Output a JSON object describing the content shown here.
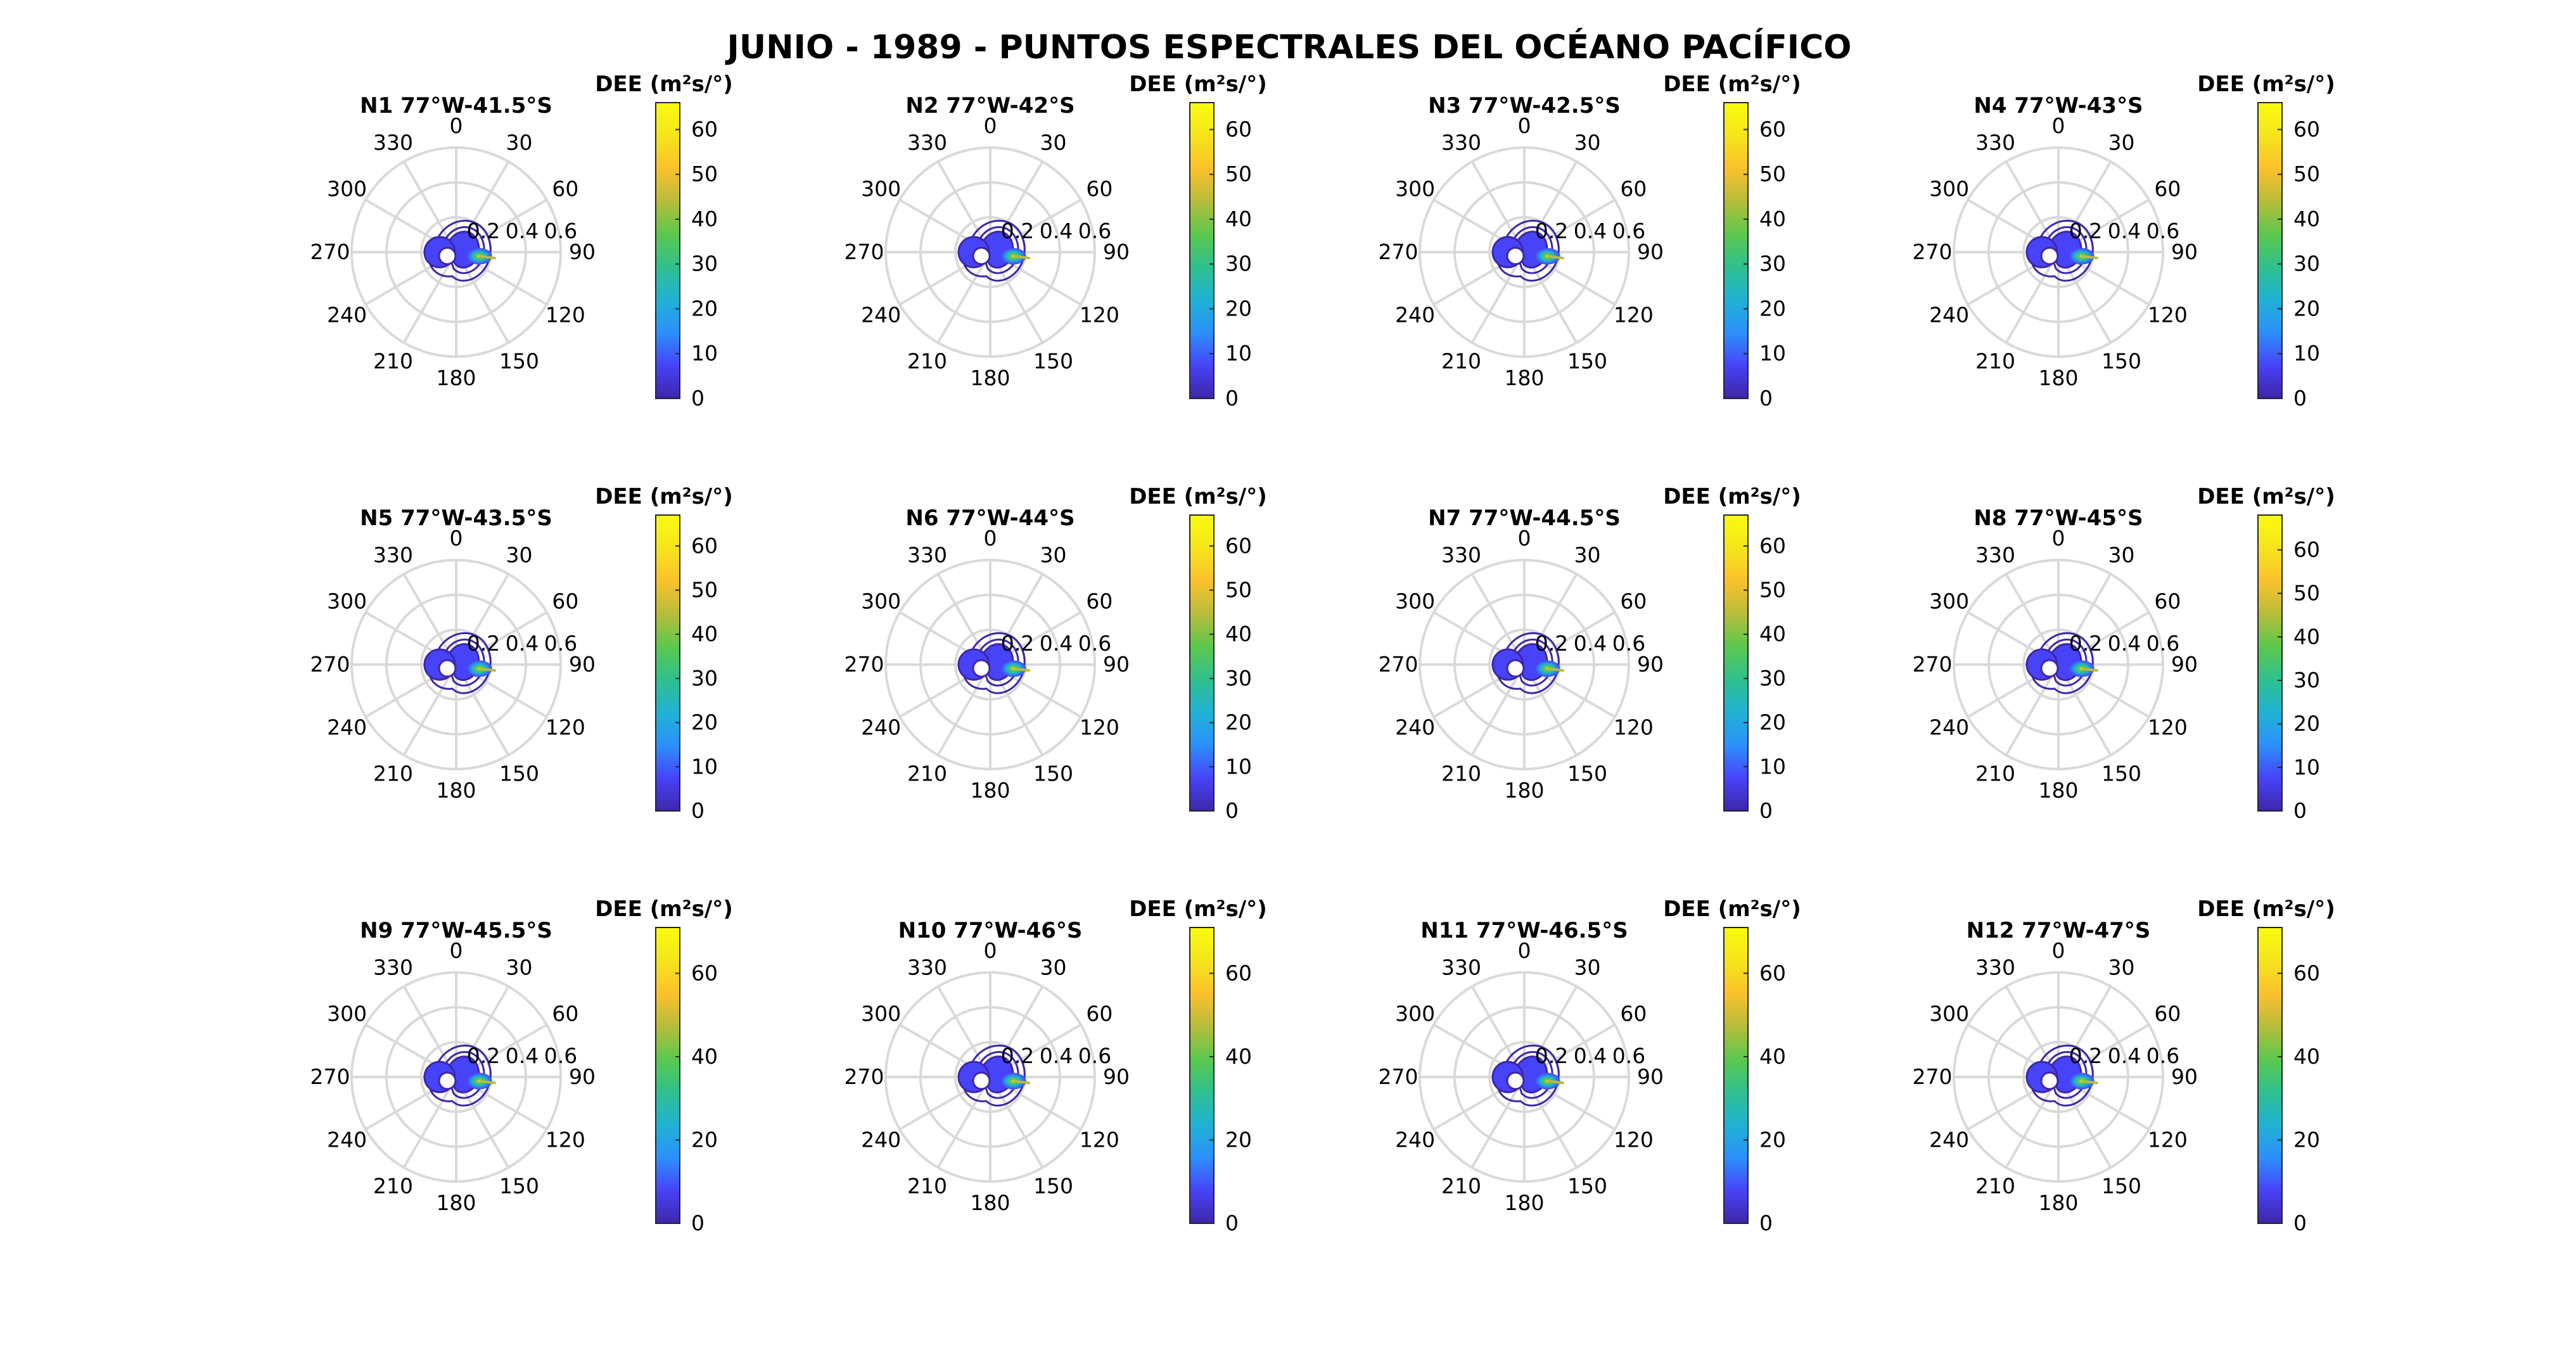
{
  "figure": {
    "title": "JUNIO - 1989 - PUNTOS ESPECTRALES DEL OCÉANO PACÍFICO",
    "colorbar_title": "DEE (m²s/°)",
    "colormap": [
      "#3e26a8",
      "#4743f8",
      "#2c90fc",
      "#1fb2d3",
      "#2fc08e",
      "#5cc84d",
      "#b8bc3a",
      "#fbc12c",
      "#f5e51b",
      "#f9fb0e"
    ],
    "grid_color": "#d9d9d9",
    "contour_color": "#3e26a8"
  },
  "chart_data": [
    {
      "type": "polar-contour",
      "title": "N1 77°W-41.5°S",
      "angle_ticks": [
        "0",
        "30",
        "60",
        "90",
        "120",
        "150",
        "180",
        "210",
        "240",
        "270",
        "300",
        "330"
      ],
      "radial_ticks": [
        "0.2",
        "0.4",
        "0.6"
      ],
      "rlim": [
        0,
        0.6
      ],
      "colorbar": {
        "ticks": [
          0,
          10,
          20,
          30,
          40,
          50,
          60
        ],
        "clim": [
          0,
          66
        ]
      },
      "peak_direction_deg": 100,
      "peak_frequency": 0.07
    },
    {
      "type": "polar-contour",
      "title": "N2 77°W-42°S",
      "angle_ticks": [
        "0",
        "30",
        "60",
        "90",
        "120",
        "150",
        "180",
        "210",
        "240",
        "270",
        "300",
        "330"
      ],
      "radial_ticks": [
        "0.2",
        "0.4",
        "0.6"
      ],
      "rlim": [
        0,
        0.6
      ],
      "colorbar": {
        "ticks": [
          0,
          10,
          20,
          30,
          40,
          50,
          60
        ],
        "clim": [
          0,
          66
        ]
      },
      "peak_direction_deg": 100,
      "peak_frequency": 0.07
    },
    {
      "type": "polar-contour",
      "title": "N3 77°W-42.5°S",
      "angle_ticks": [
        "0",
        "30",
        "60",
        "90",
        "120",
        "150",
        "180",
        "210",
        "240",
        "270",
        "300",
        "330"
      ],
      "radial_ticks": [
        "0.2",
        "0.4",
        "0.6"
      ],
      "rlim": [
        0,
        0.6
      ],
      "colorbar": {
        "ticks": [
          0,
          10,
          20,
          30,
          40,
          50,
          60
        ],
        "clim": [
          0,
          66
        ]
      },
      "peak_direction_deg": 100,
      "peak_frequency": 0.07
    },
    {
      "type": "polar-contour",
      "title": "N4 77°W-43°S",
      "angle_ticks": [
        "0",
        "30",
        "60",
        "90",
        "120",
        "150",
        "180",
        "210",
        "240",
        "270",
        "300",
        "330"
      ],
      "radial_ticks": [
        "0.2",
        "0.4",
        "0.6"
      ],
      "rlim": [
        0,
        0.6
      ],
      "colorbar": {
        "ticks": [
          0,
          10,
          20,
          30,
          40,
          50,
          60
        ],
        "clim": [
          0,
          66
        ]
      },
      "peak_direction_deg": 100,
      "peak_frequency": 0.07
    },
    {
      "type": "polar-contour",
      "title": "N5 77°W-43.5°S",
      "angle_ticks": [
        "0",
        "30",
        "60",
        "90",
        "120",
        "150",
        "180",
        "210",
        "240",
        "270",
        "300",
        "330"
      ],
      "radial_ticks": [
        "0.2",
        "0.4",
        "0.6"
      ],
      "rlim": [
        0,
        0.6
      ],
      "colorbar": {
        "ticks": [
          0,
          10,
          20,
          30,
          40,
          50,
          60
        ],
        "clim": [
          0,
          67
        ]
      },
      "peak_direction_deg": 100,
      "peak_frequency": 0.07
    },
    {
      "type": "polar-contour",
      "title": "N6 77°W-44°S",
      "angle_ticks": [
        "0",
        "30",
        "60",
        "90",
        "120",
        "150",
        "180",
        "210",
        "240",
        "270",
        "300",
        "330"
      ],
      "radial_ticks": [
        "0.2",
        "0.4",
        "0.6"
      ],
      "rlim": [
        0,
        0.6
      ],
      "colorbar": {
        "ticks": [
          0,
          10,
          20,
          30,
          40,
          50,
          60
        ],
        "clim": [
          0,
          67
        ]
      },
      "peak_direction_deg": 100,
      "peak_frequency": 0.07
    },
    {
      "type": "polar-contour",
      "title": "N7 77°W-44.5°S",
      "angle_ticks": [
        "0",
        "30",
        "60",
        "90",
        "120",
        "150",
        "180",
        "210",
        "240",
        "270",
        "300",
        "330"
      ],
      "radial_ticks": [
        "0.2",
        "0.4",
        "0.6"
      ],
      "rlim": [
        0,
        0.6
      ],
      "colorbar": {
        "ticks": [
          0,
          10,
          20,
          30,
          40,
          50,
          60
        ],
        "clim": [
          0,
          67
        ]
      },
      "peak_direction_deg": 100,
      "peak_frequency": 0.07
    },
    {
      "type": "polar-contour",
      "title": "N8 77°W-45°S",
      "angle_ticks": [
        "0",
        "30",
        "60",
        "90",
        "120",
        "150",
        "180",
        "210",
        "240",
        "270",
        "300",
        "330"
      ],
      "radial_ticks": [
        "0.2",
        "0.4",
        "0.6"
      ],
      "rlim": [
        0,
        0.6
      ],
      "colorbar": {
        "ticks": [
          0,
          10,
          20,
          30,
          40,
          50,
          60
        ],
        "clim": [
          0,
          68
        ]
      },
      "peak_direction_deg": 100,
      "peak_frequency": 0.07
    },
    {
      "type": "polar-contour",
      "title": "N9 77°W-45.5°S",
      "angle_ticks": [
        "0",
        "30",
        "60",
        "90",
        "120",
        "150",
        "180",
        "210",
        "240",
        "270",
        "300",
        "330"
      ],
      "radial_ticks": [
        "0.2",
        "0.4",
        "0.6"
      ],
      "rlim": [
        0,
        0.6
      ],
      "colorbar": {
        "ticks": [
          0,
          20,
          40,
          60
        ],
        "clim": [
          0,
          71
        ]
      },
      "peak_direction_deg": 100,
      "peak_frequency": 0.07
    },
    {
      "type": "polar-contour",
      "title": "N10 77°W-46°S",
      "angle_ticks": [
        "0",
        "30",
        "60",
        "90",
        "120",
        "150",
        "180",
        "210",
        "240",
        "270",
        "300",
        "330"
      ],
      "radial_ticks": [
        "0.2",
        "0.4",
        "0.6"
      ],
      "rlim": [
        0,
        0.6
      ],
      "colorbar": {
        "ticks": [
          0,
          20,
          40,
          60
        ],
        "clim": [
          0,
          71
        ]
      },
      "peak_direction_deg": 100,
      "peak_frequency": 0.07
    },
    {
      "type": "polar-contour",
      "title": "N11 77°W-46.5°S",
      "angle_ticks": [
        "0",
        "30",
        "60",
        "90",
        "120",
        "150",
        "180",
        "210",
        "240",
        "270",
        "300",
        "330"
      ],
      "radial_ticks": [
        "0.2",
        "0.4",
        "0.6"
      ],
      "rlim": [
        0,
        0.6
      ],
      "colorbar": {
        "ticks": [
          0,
          20,
          40,
          60
        ],
        "clim": [
          0,
          71
        ]
      },
      "peak_direction_deg": 100,
      "peak_frequency": 0.07
    },
    {
      "type": "polar-contour",
      "title": "N12 77°W-47°S",
      "angle_ticks": [
        "0",
        "30",
        "60",
        "90",
        "120",
        "150",
        "180",
        "210",
        "240",
        "270",
        "300",
        "330"
      ],
      "radial_ticks": [
        "0.2",
        "0.4",
        "0.6"
      ],
      "rlim": [
        0,
        0.6
      ],
      "colorbar": {
        "ticks": [
          0,
          20,
          40,
          60
        ],
        "clim": [
          0,
          71
        ]
      },
      "peak_direction_deg": 100,
      "peak_frequency": 0.07
    }
  ]
}
